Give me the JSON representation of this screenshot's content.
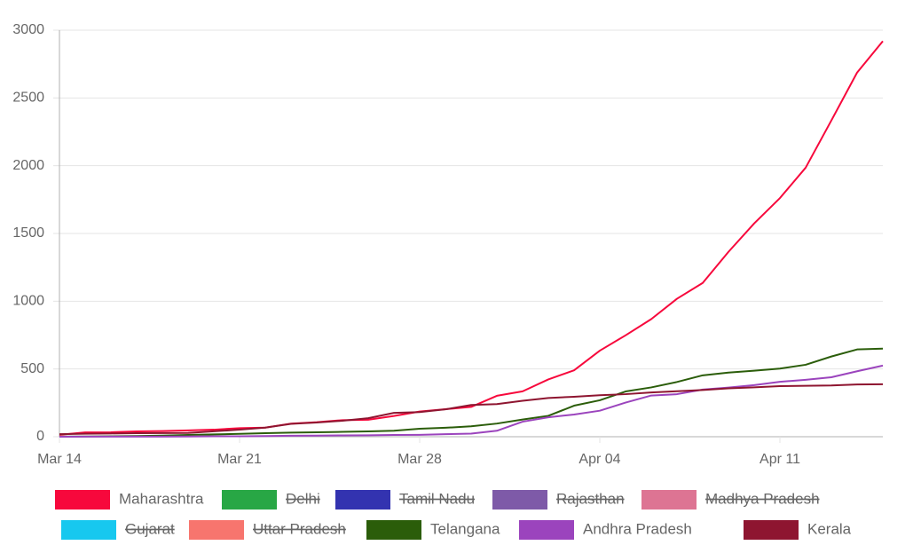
{
  "chart_data": {
    "type": "line",
    "categories": [
      "Mar 14",
      null,
      null,
      null,
      null,
      null,
      null,
      "Mar 21",
      null,
      null,
      null,
      null,
      null,
      null,
      "Mar 28",
      null,
      null,
      null,
      null,
      null,
      null,
      "Apr 04",
      null,
      null,
      null,
      null,
      null,
      null,
      "Apr 11",
      null,
      null,
      null,
      null
    ],
    "series": [
      {
        "name": "Maharashtra",
        "color": "#f7083c",
        "hidden": false,
        "values": [
          14,
          32,
          33,
          39,
          42,
          47,
          52,
          63,
          67,
          97,
          107,
          122,
          125,
          153,
          186,
          203,
          220,
          302,
          335,
          423,
          490,
          635,
          748,
          868,
          1018,
          1135,
          1364,
          1574,
          1761,
          1985,
          2334,
          2687,
          2919
        ]
      },
      {
        "name": "Delhi",
        "color": "#28a745",
        "hidden": true
      },
      {
        "name": "Tamil Nadu",
        "color": "#3333b0",
        "hidden": true
      },
      {
        "name": "Rajasthan",
        "color": "#7e5aa8",
        "hidden": true
      },
      {
        "name": "Madhya Pradesh",
        "color": "#dd7493",
        "hidden": true
      },
      {
        "name": "Gujarat",
        "color": "#17c8ef",
        "hidden": true
      },
      {
        "name": "Uttar Pradesh",
        "color": "#f7756e",
        "hidden": true
      },
      {
        "name": "Telangana",
        "color": "#2b5d0a",
        "hidden": false,
        "values": [
          1,
          2,
          3,
          5,
          8,
          13,
          17,
          21,
          26,
          30,
          33,
          36,
          39,
          44,
          59,
          66,
          77,
          97,
          127,
          154,
          229,
          269,
          334,
          364,
          404,
          453,
          473,
          487,
          503,
          531,
          592,
          644,
          650
        ]
      },
      {
        "name": "Andhra Pradesh",
        "color": "#9b44bd",
        "hidden": false,
        "values": [
          0,
          1,
          1,
          1,
          1,
          2,
          3,
          3,
          5,
          7,
          8,
          10,
          11,
          13,
          14,
          19,
          23,
          44,
          111,
          143,
          164,
          192,
          252,
          304,
          314,
          348,
          363,
          381,
          405,
          420,
          439,
          483,
          525
        ]
      },
      {
        "name": "Kerala",
        "color": "#8e1530",
        "hidden": false,
        "values": [
          19,
          22,
          24,
          26,
          27,
          28,
          40,
          52,
          67,
          95,
          105,
          118,
          137,
          176,
          182,
          202,
          234,
          241,
          265,
          286,
          295,
          306,
          314,
          327,
          336,
          345,
          357,
          364,
          373,
          376,
          378,
          386,
          387
        ]
      }
    ],
    "ylim": [
      0,
      3000
    ],
    "yticks": [
      0,
      500,
      1000,
      1500,
      2000,
      2500,
      3000
    ],
    "grid": true
  }
}
